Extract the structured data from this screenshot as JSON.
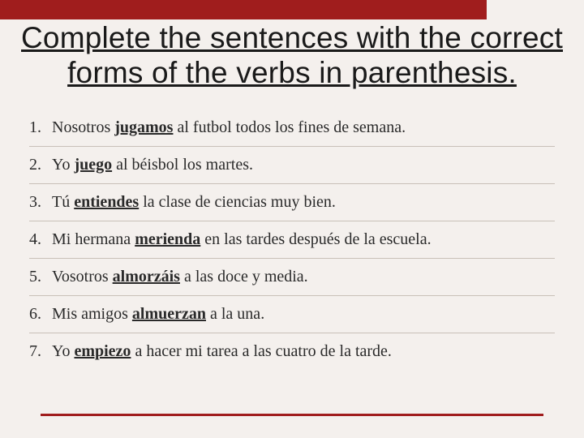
{
  "colors": {
    "background": "#f4f0ed",
    "accent": "#a01d1d",
    "text": "#2a2a2a",
    "rule": "#c8c0b8"
  },
  "title": {
    "line1": "Complete the sentences with the correct",
    "line2": "forms of the verbs in parenthesis.",
    "fontsize": 37
  },
  "items": [
    {
      "num": "1.",
      "pre": "Nosotros ",
      "verb": "jugamos",
      "post": " al futbol todos los fines de semana."
    },
    {
      "num": "2.",
      "pre": "Yo ",
      "verb": "juego",
      "post": " al béisbol los martes."
    },
    {
      "num": "3.",
      "pre": "Tú ",
      "verb": "entiendes",
      "post": " la clase de ciencias muy bien."
    },
    {
      "num": "4.",
      "pre": "Mi hermana ",
      "verb": "merienda",
      "post": " en las tardes después de la escuela."
    },
    {
      "num": "5.",
      "pre": "Vosotros ",
      "verb": "almorzáis",
      "post": " a las doce y media."
    },
    {
      "num": "6.",
      "pre": "Mis amigos ",
      "verb": "almuerzan",
      "post": " a la una."
    },
    {
      "num": "7.",
      "pre": "Yo ",
      "verb": "empiezo",
      "post": " a hacer mi tarea a las cuatro de la tarde."
    }
  ],
  "list_style": {
    "fontsize": 20,
    "row_padding": 11,
    "divider_color": "#c8c0b8"
  }
}
